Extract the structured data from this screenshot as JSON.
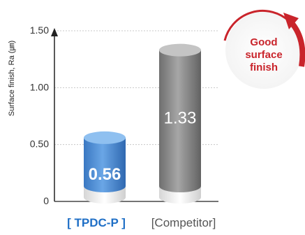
{
  "chart_data": {
    "type": "bar",
    "title": "",
    "xlabel": "",
    "ylabel": "Surface finish, Ra (㎛)",
    "ylim": [
      0,
      1.5
    ],
    "y_ticks": [
      {
        "value": 0,
        "label": "0"
      },
      {
        "value": 0.5,
        "label": "0.50"
      },
      {
        "value": 1.0,
        "label": "1.00"
      },
      {
        "value": 1.5,
        "label": "1.50"
      }
    ],
    "grid": true,
    "categories": [
      "[ TPDC-P ]",
      "[Competitor]"
    ],
    "values": [
      0.56,
      1.33
    ],
    "value_labels": [
      "0.56",
      "1.33"
    ],
    "annotation": [
      "Good",
      "surface",
      "finish"
    ],
    "colors": {
      "tpdc_bar": "#4f8fd6",
      "tpdc_top": "#8fc0f0",
      "competitor_bar": "#8a8a8a",
      "competitor_top": "#c4c4c4",
      "tpdc_label": "#1f6fc6",
      "competitor_label": "#555555",
      "accent": "#c9242b",
      "grid": "#c8c8c8",
      "axis": "#222222"
    }
  }
}
